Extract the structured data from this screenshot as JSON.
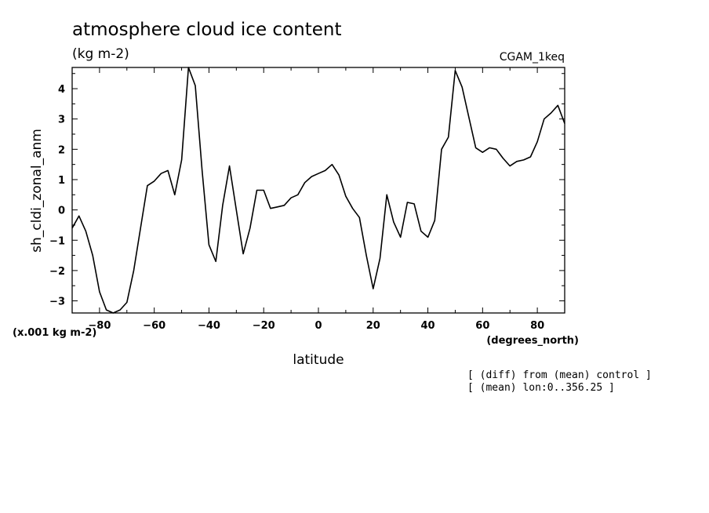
{
  "header": {
    "title": "atmosphere cloud ice content",
    "units": "(kg m-2)",
    "run": "CGAM_1keq"
  },
  "axes": {
    "ylabel": "sh_cldi_zonal_anm",
    "xlabel": "latitude",
    "scale_note": "(x.001 kg m-2)",
    "x_units": "(degrees_north)"
  },
  "notes": {
    "line1": "[ (diff) from (mean) control ]",
    "line2": "[ (mean) lon:0..356.25 ]"
  },
  "chart_data": {
    "type": "line",
    "title": "atmosphere cloud ice content",
    "xlabel": "latitude",
    "ylabel": "sh_cldi_zonal_anm",
    "xlim": [
      -90,
      90
    ],
    "ylim": [
      -3.4,
      4.7
    ],
    "xticks": [
      -80,
      -60,
      -40,
      -20,
      0,
      20,
      40,
      60,
      80
    ],
    "yticks": [
      -3,
      -2,
      -1,
      0,
      1,
      2,
      3,
      4
    ],
    "grid": false,
    "series": [
      {
        "x": [
          -90,
          -87.5,
          -85,
          -82.5,
          -80,
          -77.5,
          -75,
          -72.5,
          -70,
          -67.5,
          -65,
          -62.5,
          -60,
          -57.5,
          -55,
          -52.5,
          -50,
          -47.5,
          -45,
          -42.5,
          -40,
          -37.5,
          -35,
          -32.5,
          -30,
          -27.5,
          -25,
          -22.5,
          -20,
          -17.5,
          -15,
          -12.5,
          -10,
          -7.5,
          -5,
          -2.5,
          0,
          2.5,
          5,
          7.5,
          10,
          12.5,
          15,
          17.5,
          20,
          22.5,
          25,
          27.5,
          30,
          32.5,
          35,
          37.5,
          40,
          42.5,
          45,
          47.5,
          50,
          52.5,
          55,
          57.5,
          60,
          62.5,
          65,
          67.5,
          70,
          72.5,
          75,
          77.5,
          80,
          82.5,
          85,
          87.5,
          90
        ],
        "y": [
          -0.6,
          -0.2,
          -0.7,
          -1.5,
          -2.7,
          -3.3,
          -3.4,
          -3.3,
          -3.05,
          -2.0,
          -0.6,
          0.8,
          0.95,
          1.2,
          1.3,
          0.5,
          1.65,
          4.75,
          4.1,
          1.3,
          -1.15,
          -1.7,
          0.15,
          1.45,
          0.0,
          -1.45,
          -0.6,
          0.65,
          0.65,
          0.05,
          0.1,
          0.15,
          0.4,
          0.5,
          0.9,
          1.1,
          1.2,
          1.3,
          1.5,
          1.15,
          0.45,
          0.05,
          -0.25,
          -1.5,
          -2.6,
          -1.6,
          0.5,
          -0.4,
          -0.9,
          0.25,
          0.2,
          -0.7,
          -0.9,
          -0.35,
          2.0,
          2.4,
          4.6,
          4.05,
          3.05,
          2.05,
          1.9,
          2.05,
          2.0,
          1.7,
          1.45,
          1.6,
          1.65,
          1.75,
          2.25,
          3.0,
          3.2,
          3.45,
          2.85
        ]
      }
    ]
  }
}
